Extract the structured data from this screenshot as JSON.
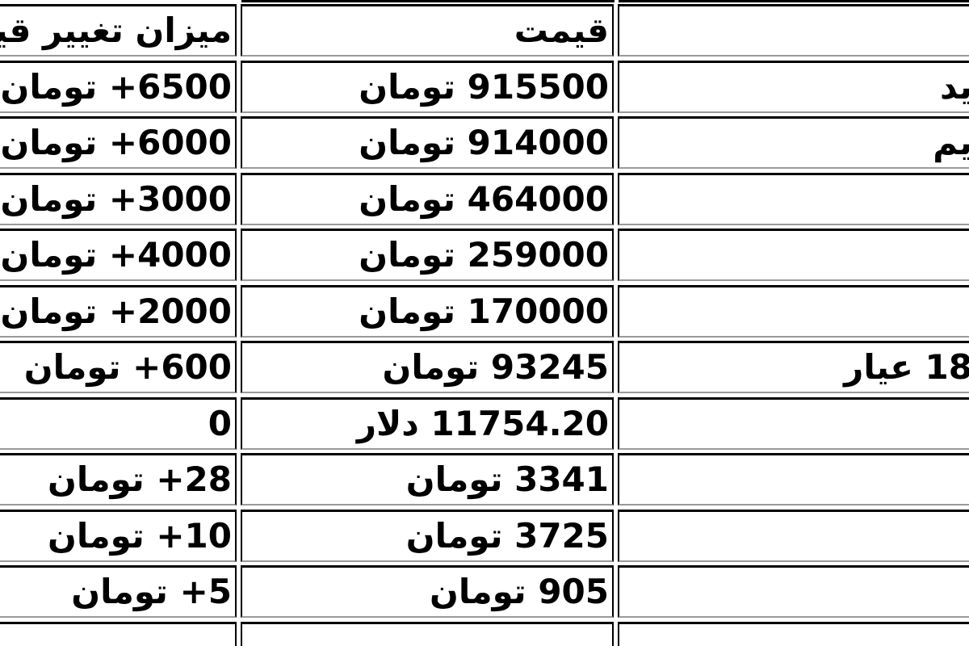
{
  "table": {
    "header": {
      "change": "میزان تغییر قیمت",
      "price": "قیمت",
      "name": ""
    },
    "rows": [
      {
        "name": "ید",
        "price": "915500 تومان",
        "change": "6500+ تومان"
      },
      {
        "name": "یم",
        "price": "914000 تومان",
        "change": "6000+ تومان"
      },
      {
        "name": "",
        "price": "464000 تومان",
        "change": "3000+ تومان"
      },
      {
        "name": "",
        "price": "259000 تومان",
        "change": "4000+ تومان"
      },
      {
        "name": "",
        "price": "170000 تومان",
        "change": "2000+ تومان"
      },
      {
        "name": "18 عیار",
        "price": "93245 تومان",
        "change": "600+ تومان"
      },
      {
        "name": "",
        "price": "11754.20 دلار",
        "change": "0"
      },
      {
        "name": "",
        "price": "3341 تومان",
        "change": "28+ تومان"
      },
      {
        "name": "",
        "price": "3725 تومان",
        "change": "10+ تومان"
      },
      {
        "name": "",
        "price": "905 تومان",
        "change": "5+ تومان"
      }
    ],
    "partial_row": {
      "name": "",
      "price": "",
      "change": ""
    }
  },
  "colors": {
    "border": "#000000",
    "border_bottom": "#9a9a9a",
    "text": "#000000",
    "background": "#ffffff"
  }
}
